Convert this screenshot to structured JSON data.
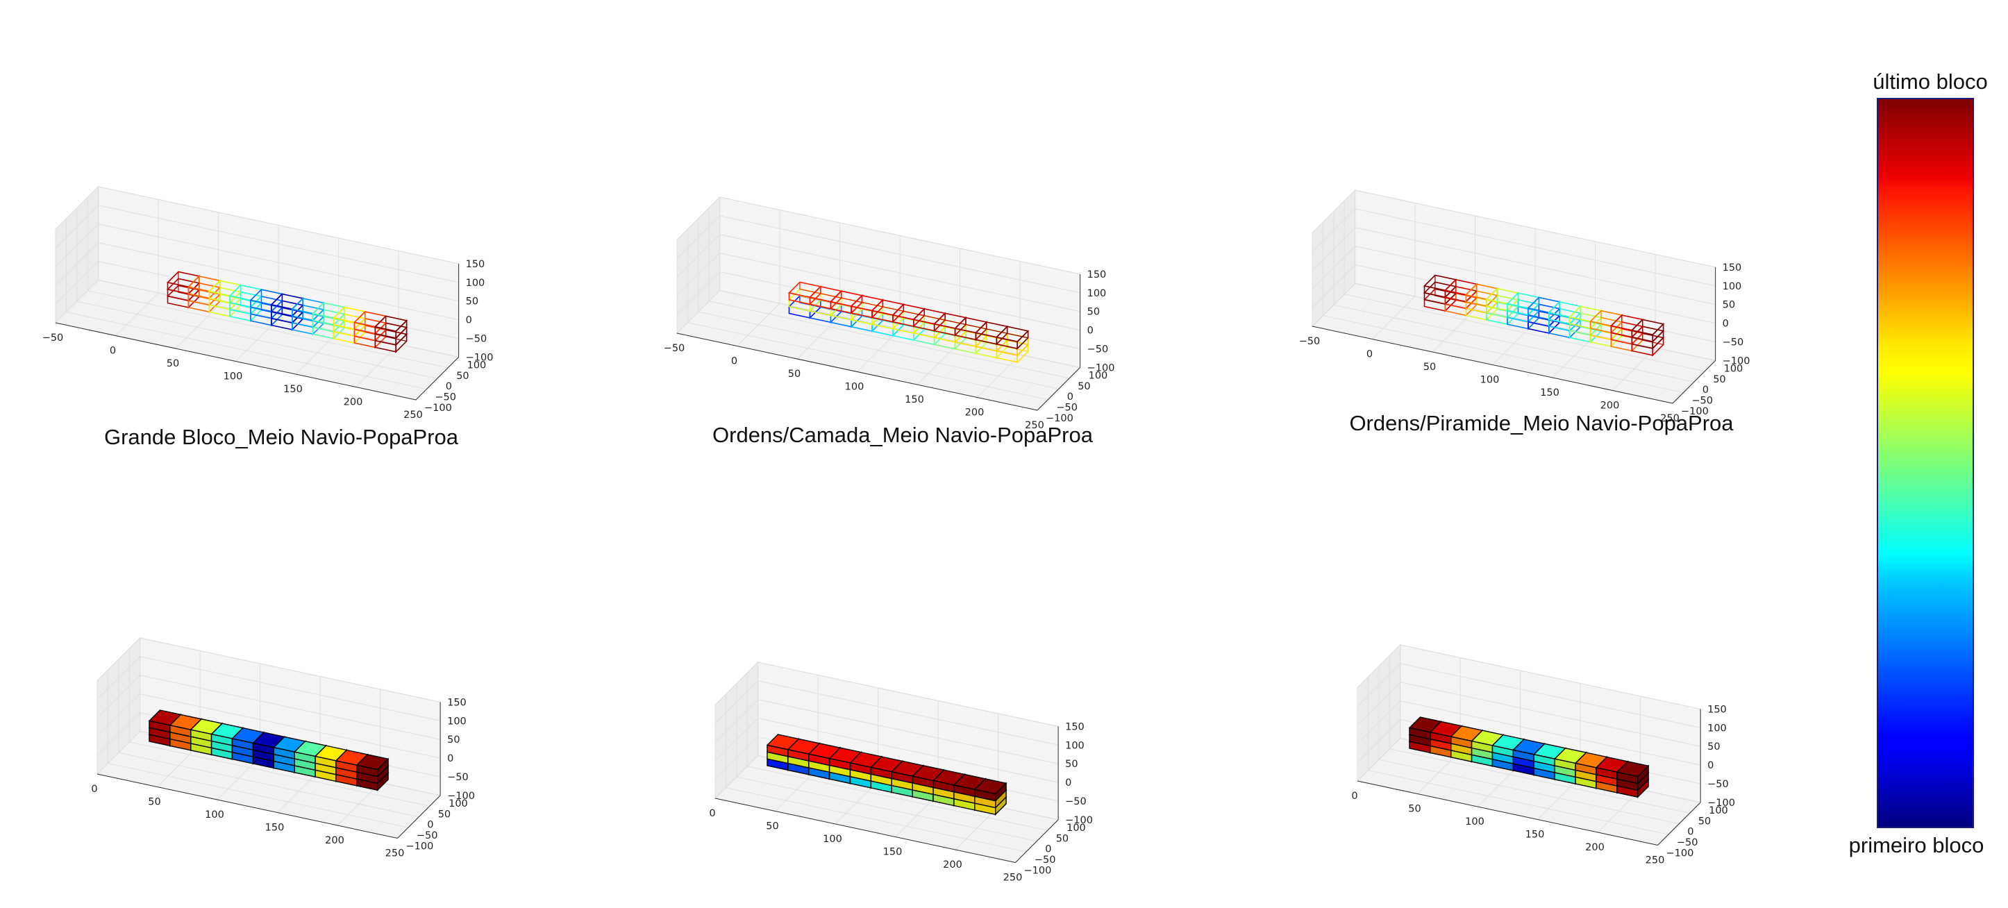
{
  "chart_data": {
    "type": "3d-voxel",
    "colormap": "jet",
    "colorbar": {
      "top_label": "último bloco",
      "bottom_label": "primeiro bloco"
    },
    "panels": [
      {
        "id": "wire-grande-bloco",
        "row": 0,
        "col": 0,
        "style": "wireframe",
        "title": "",
        "xticks": [
          "−50",
          "0",
          "50",
          "100",
          "150",
          "200",
          "250"
        ],
        "yticks": [
          "−100",
          "−50",
          "0",
          "50",
          "100"
        ],
        "zticks": [
          "−100",
          "−50",
          "0",
          "50",
          "100",
          "150"
        ],
        "xlim": [
          -50,
          250
        ],
        "ylim": [
          -100,
          100
        ],
        "zlim": [
          -100,
          150
        ]
      },
      {
        "id": "wire-camada",
        "row": 0,
        "col": 1,
        "style": "wireframe",
        "title": "",
        "xticks": [
          "−50",
          "0",
          "50",
          "100",
          "150",
          "200",
          "250"
        ],
        "yticks": [
          "−100",
          "−50",
          "0",
          "50",
          "100"
        ],
        "zticks": [
          "−100",
          "−50",
          "0",
          "50",
          "100",
          "150"
        ],
        "xlim": [
          -50,
          250
        ],
        "ylim": [
          -100,
          100
        ],
        "zlim": [
          -100,
          150
        ]
      },
      {
        "id": "wire-piramide",
        "row": 0,
        "col": 2,
        "style": "wireframe",
        "title": "",
        "xticks": [
          "−50",
          "0",
          "50",
          "100",
          "150",
          "200",
          "250"
        ],
        "yticks": [
          "−100",
          "−50",
          "0",
          "50",
          "100"
        ],
        "zticks": [
          "−100",
          "−50",
          "0",
          "50",
          "100",
          "150"
        ],
        "xlim": [
          -50,
          250
        ],
        "ylim": [
          -100,
          100
        ],
        "zlim": [
          -100,
          150
        ]
      },
      {
        "id": "solid-grande-bloco",
        "row": 1,
        "col": 0,
        "style": "solid",
        "title": "Grande Bloco_Meio Navio-PopaProa",
        "xticks": [
          "0",
          "50",
          "100",
          "150",
          "200",
          "250"
        ],
        "yticks": [
          "−100",
          "−50",
          "0",
          "50",
          "100"
        ],
        "zticks": [
          "−100",
          "−50",
          "0",
          "50",
          "100",
          "150"
        ],
        "xlim": [
          0,
          250
        ],
        "ylim": [
          -100,
          100
        ],
        "zlim": [
          -100,
          150
        ]
      },
      {
        "id": "solid-camada",
        "row": 1,
        "col": 1,
        "style": "solid",
        "title": "Ordens/Camada_Meio Navio-PopaProa",
        "xticks": [
          "0",
          "50",
          "100",
          "150",
          "200",
          "250"
        ],
        "yticks": [
          "−100",
          "−50",
          "0",
          "50",
          "100"
        ],
        "zticks": [
          "−100",
          "−50",
          "0",
          "50",
          "100",
          "150"
        ],
        "xlim": [
          0,
          250
        ],
        "ylim": [
          -100,
          100
        ],
        "zlim": [
          -100,
          150
        ]
      },
      {
        "id": "solid-piramide",
        "row": 1,
        "col": 2,
        "style": "solid",
        "title": "Ordens/Piramide_Meio Navio-PopaProa",
        "xticks": [
          "0",
          "50",
          "100",
          "150",
          "200",
          "250"
        ],
        "yticks": [
          "−100",
          "−50",
          "0",
          "50",
          "100"
        ],
        "zticks": [
          "−100",
          "−50",
          "0",
          "50",
          "100",
          "150"
        ],
        "xlim": [
          0,
          250
        ],
        "ylim": [
          -100,
          100
        ],
        "zlim": [
          -100,
          150
        ]
      }
    ]
  }
}
